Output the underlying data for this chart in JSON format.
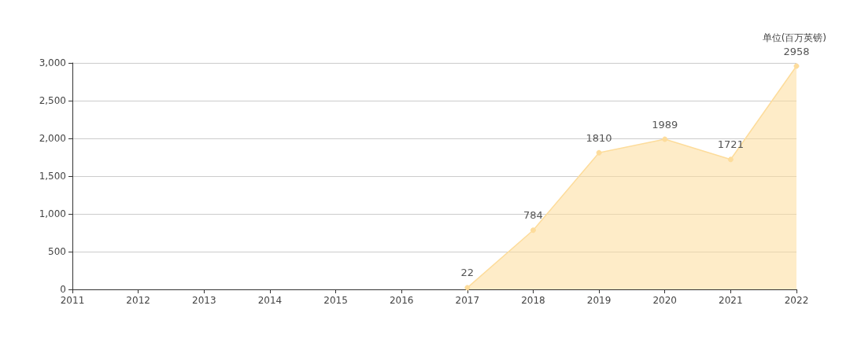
{
  "chart_data": {
    "type": "area",
    "categories": [
      "2011",
      "2012",
      "2013",
      "2014",
      "2015",
      "2016",
      "2017",
      "2018",
      "2019",
      "2020",
      "2021",
      "2022"
    ],
    "values": [
      null,
      null,
      null,
      null,
      null,
      null,
      22,
      784,
      1810,
      1989,
      1721,
      2958
    ],
    "color": "#fddc9b",
    "ylim": [
      0,
      3000
    ],
    "yticks": [
      0,
      500,
      {
        "value": 1000,
        "label": "1,000"
      },
      {
        "value": 1500,
        "label": "1,500"
      },
      {
        "value": 2000,
        "label": "2,000"
      },
      {
        "value": 2500,
        "label": "2,500"
      },
      {
        "value": 3000,
        "label": "3,000"
      }
    ],
    "grid": "y",
    "data_labels": true,
    "marker": "circle",
    "annotations": [
      "单位(百万英镑)"
    ]
  }
}
